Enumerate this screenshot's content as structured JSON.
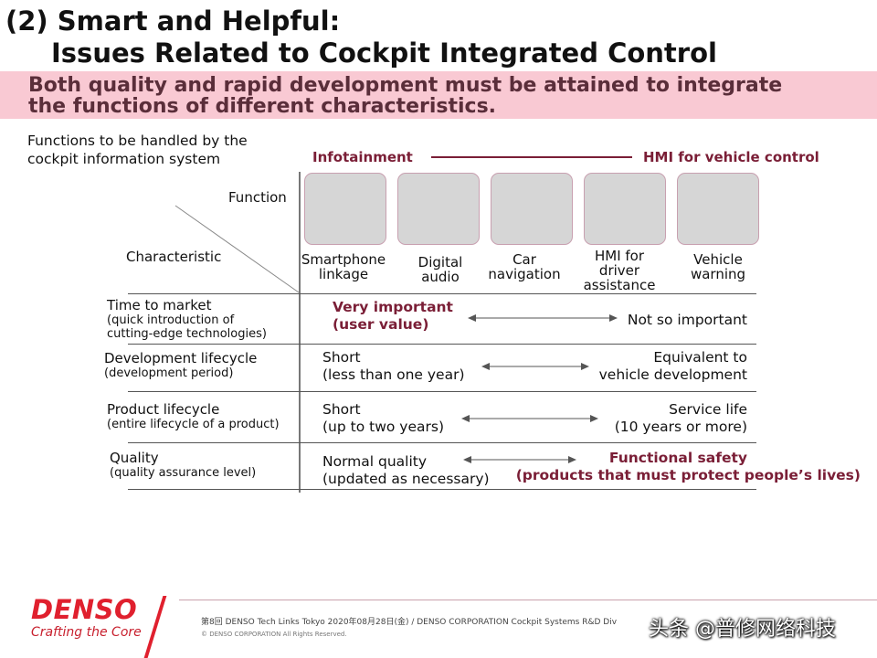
{
  "slide": {
    "title_line1": "(2) Smart and Helpful:",
    "title_line2": "Issues Related to Cockpit Integrated Control",
    "banner_line1": "Both quality and rapid development must be attained to integrate",
    "banner_line2": "the functions of different characteristics.",
    "intro_line1": "Functions to be handled by the",
    "intro_line2": "cockpit information system"
  },
  "axis": {
    "left_label": "Infotainment",
    "right_label": "HMI for vehicle  control",
    "function_label": "Function",
    "characteristic_label": "Characteristic"
  },
  "functions": [
    {
      "line1": "Smartphone",
      "line2": "linkage",
      "line3": ""
    },
    {
      "line1": "Digital",
      "line2": "audio",
      "line3": ""
    },
    {
      "line1": "Car",
      "line2": "navigation",
      "line3": ""
    },
    {
      "line1": "HMI for",
      "line2": "driver",
      "line3": "assistance"
    },
    {
      "line1": "Vehicle",
      "line2": "warning",
      "line3": ""
    }
  ],
  "rows": [
    {
      "label": "Time to market",
      "sub1": "(quick introduction of",
      "sub2": "cutting-edge technologies)",
      "left1": "Very important",
      "left2": "(user value)",
      "right1": "Not so important",
      "right2": ""
    },
    {
      "label": "Development lifecycle",
      "sub1": "(development period)",
      "sub2": "",
      "left1": "Short",
      "left2": "(less than one year)",
      "right1": "Equivalent to",
      "right2": "vehicle development"
    },
    {
      "label": "Product lifecycle",
      "sub1": "(entire lifecycle  of a product)",
      "sub2": "",
      "left1": "Short",
      "left2": "(up to two years)",
      "right1": "Service life",
      "right2": "(10 years or more)"
    },
    {
      "label": "Quality",
      "sub1": "(quality assurance level)",
      "sub2": "",
      "left1": "Normal quality",
      "left2": "(updated as necessary)",
      "right1": "Functional  safety",
      "right2": "(products that must protect people’s lives)"
    }
  ],
  "footer": {
    "logo": "DENSO",
    "tagline": "Crafting the Core",
    "event_text": "第8回  DENSO Tech Links Tokyo 2020年08月28日(金) / DENSO CORPORATION Cockpit Systems R&D Div",
    "copyright": "© DENSO CORPORATION All Rights Reserved.",
    "watermark": "头条 @普修网络科技"
  },
  "colors": {
    "banner_bg": "#f9c9d3",
    "accent_maroon": "#7a1e36",
    "brand_red": "#e0202e",
    "tile_fill": "#d6d6d6"
  }
}
